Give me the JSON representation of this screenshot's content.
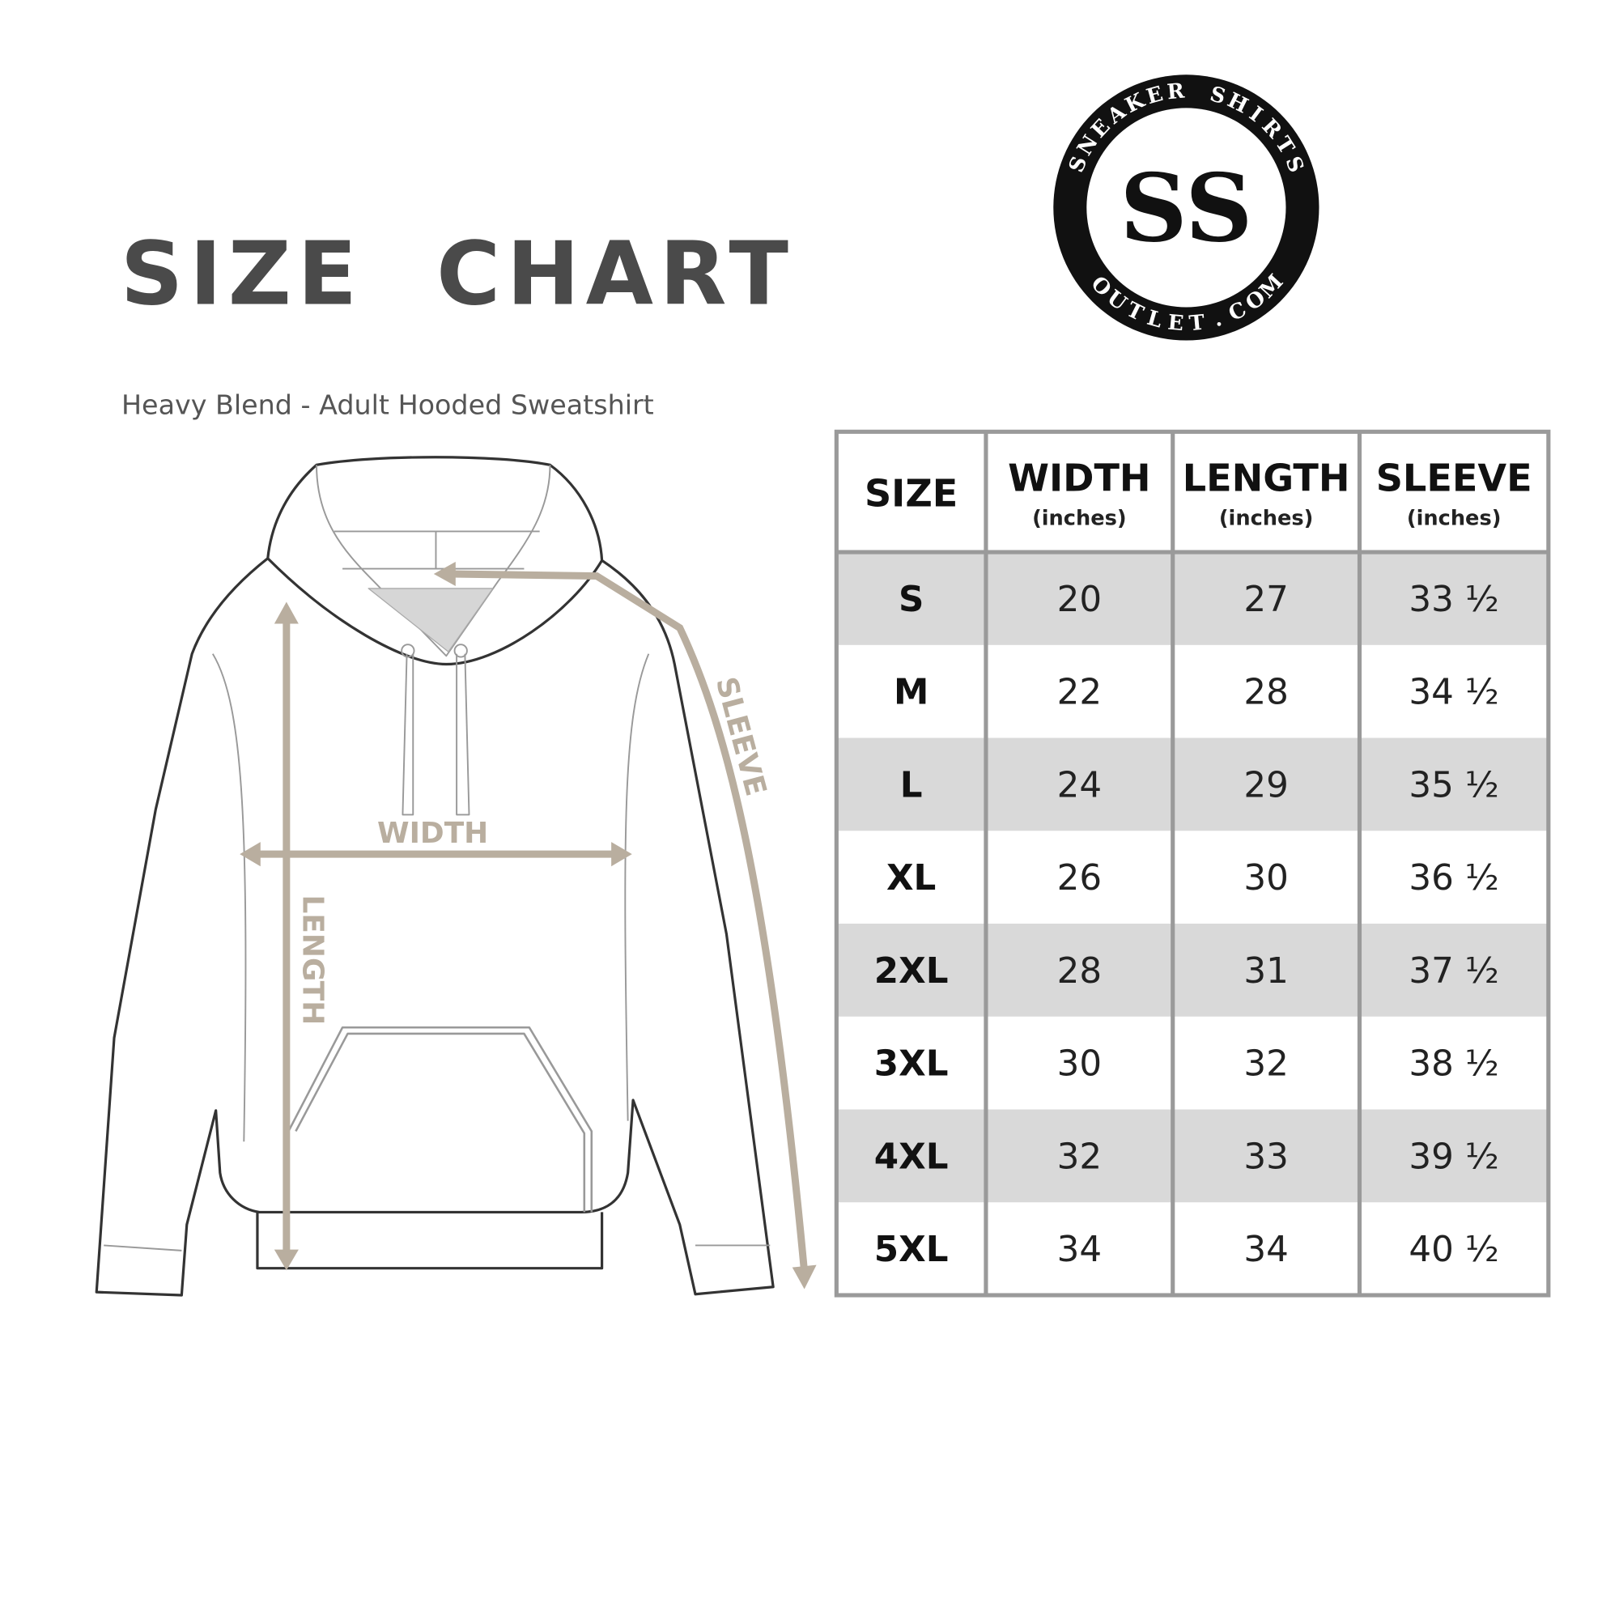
{
  "header": {
    "title": "SIZE  CHART",
    "subtitle": "Heavy Blend - Adult Hooded Sweatshirt"
  },
  "logo": {
    "top_text": "SNEAKER SHIRTS",
    "bottom_text": "OUTLET.COM",
    "monogram": "SS"
  },
  "diagram": {
    "width_label": "WIDTH",
    "length_label": "LENGTH",
    "sleeve_label": "SLEEVE",
    "arrow_color": "#b9ae9f"
  },
  "table": {
    "columns": [
      {
        "title": "SIZE",
        "unit": ""
      },
      {
        "title": "WIDTH",
        "unit": "(inches)"
      },
      {
        "title": "LENGTH",
        "unit": "(inches)"
      },
      {
        "title": "SLEEVE",
        "unit": "(inches)"
      }
    ],
    "rows": [
      [
        "S",
        "20",
        "27",
        "33 ½"
      ],
      [
        "M",
        "22",
        "28",
        "34 ½"
      ],
      [
        "L",
        "24",
        "29",
        "35 ½"
      ],
      [
        "XL",
        "26",
        "30",
        "36 ½"
      ],
      [
        "2XL",
        "28",
        "31",
        "37 ½"
      ],
      [
        "3XL",
        "30",
        "32",
        "38 ½"
      ],
      [
        "4XL",
        "32",
        "33",
        "39 ½"
      ],
      [
        "5XL",
        "34",
        "34",
        "40 ½"
      ]
    ],
    "stripe_color": "#d9d9d9",
    "border_color": "#9a9a9a"
  }
}
